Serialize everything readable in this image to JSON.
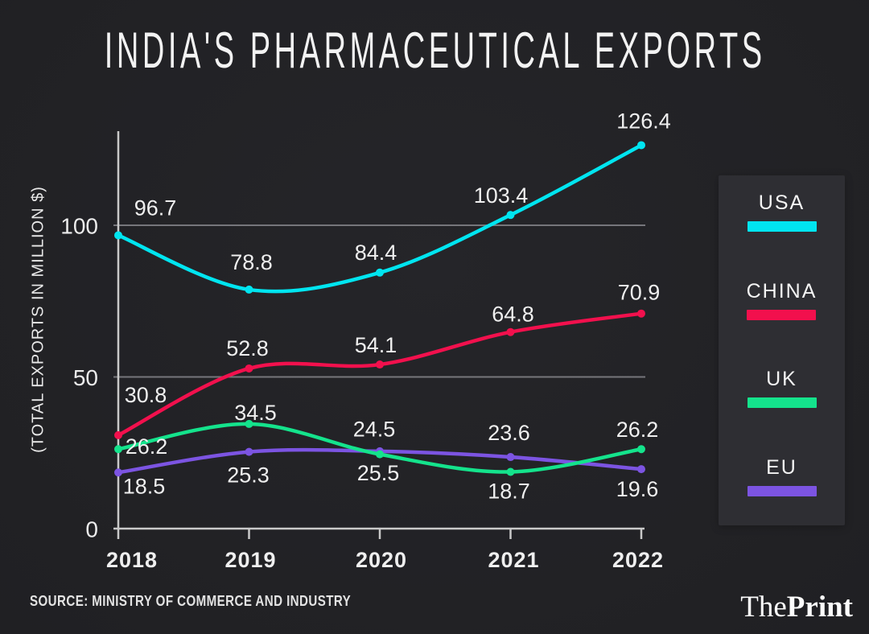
{
  "title": "INDIA'S PHARMACEUTICAL EXPORTS",
  "source": "SOURCE: MINISTRY OF COMMERCE AND INDUSTRY",
  "brand": {
    "the": "The",
    "print": "Print"
  },
  "colors": {
    "background": "#232327",
    "panel": "#2e2e33",
    "axis": "#c9c9c9",
    "grid": "#76767b",
    "label_text": "#efefef"
  },
  "chart_data": {
    "type": "line",
    "title": "INDIA'S PHARMACEUTICAL EXPORTS",
    "xlabel": "",
    "ylabel": "(TOTAL EXPORTS IN MILLION $)",
    "categories": [
      "2018",
      "2019",
      "2020",
      "2021",
      "2022"
    ],
    "series": [
      {
        "name": "USA",
        "color": "#00e5f0",
        "values": [
          96.7,
          78.8,
          84.4,
          103.4,
          126.4
        ]
      },
      {
        "name": "CHINA",
        "color": "#f2104d",
        "values": [
          30.8,
          52.8,
          54.1,
          64.8,
          70.9
        ]
      },
      {
        "name": "UK",
        "color": "#14e38c",
        "values": [
          26.2,
          34.5,
          24.5,
          18.7,
          26.2
        ]
      },
      {
        "name": "EU",
        "color": "#7c54e2",
        "values": [
          18.5,
          25.3,
          25.5,
          23.6,
          19.6
        ]
      }
    ],
    "yticks": [
      0,
      50,
      100
    ],
    "gridlines": [
      50,
      100
    ],
    "ylim": [
      0,
      131
    ],
    "grid": true,
    "legend_position": "right",
    "point_labels": true
  }
}
